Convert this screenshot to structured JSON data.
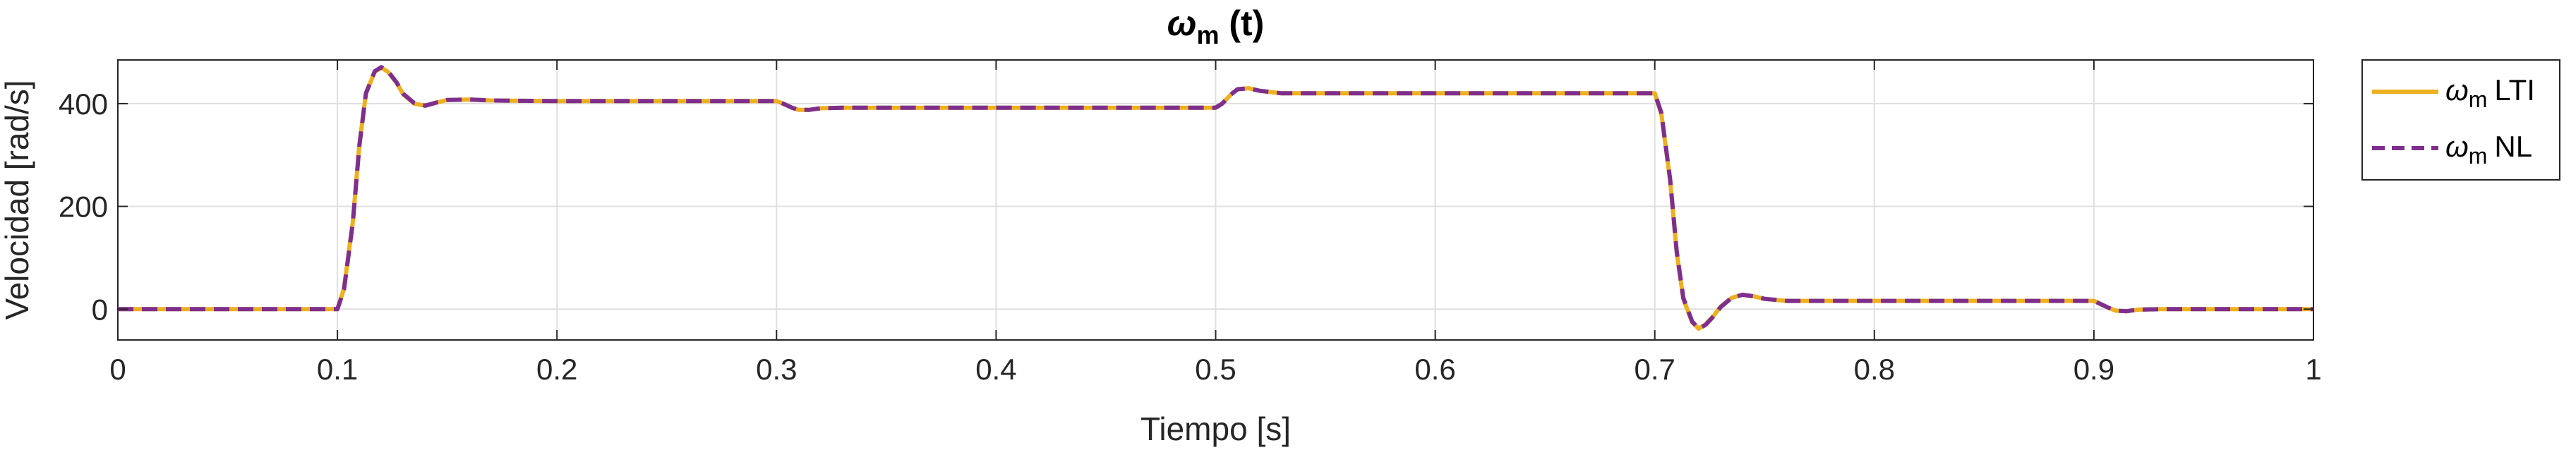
{
  "chart_data": {
    "type": "line",
    "title": "ω",
    "title_sub": "m",
    "title_suffix": " (t)",
    "xlabel": "Tiempo [s]",
    "ylabel": "Velocidad [rad/s]",
    "xlim": [
      0,
      1
    ],
    "ylim": [
      -60,
      485
    ],
    "xticks": [
      0,
      0.1,
      0.2,
      0.3,
      0.4,
      0.5,
      0.6,
      0.7,
      0.8,
      0.9,
      1
    ],
    "xtick_labels": [
      "0",
      "0.1",
      "0.2",
      "0.3",
      "0.4",
      "0.5",
      "0.6",
      "0.7",
      "0.8",
      "0.9",
      "1"
    ],
    "yticks": [
      0,
      200,
      400
    ],
    "ytick_labels": [
      "0",
      "200",
      "400"
    ],
    "grid": true,
    "legend_position": "outside-right",
    "x": [
      0,
      0.1,
      0.103,
      0.107,
      0.11,
      0.113,
      0.117,
      0.12,
      0.123,
      0.127,
      0.13,
      0.135,
      0.14,
      0.145,
      0.15,
      0.16,
      0.17,
      0.2,
      0.3,
      0.303,
      0.307,
      0.31,
      0.315,
      0.32,
      0.33,
      0.35,
      0.4,
      0.5,
      0.503,
      0.507,
      0.51,
      0.515,
      0.52,
      0.53,
      0.55,
      0.6,
      0.7,
      0.703,
      0.707,
      0.71,
      0.713,
      0.717,
      0.72,
      0.723,
      0.727,
      0.73,
      0.735,
      0.74,
      0.745,
      0.75,
      0.76,
      0.77,
      0.8,
      0.9,
      0.903,
      0.907,
      0.91,
      0.915,
      0.92,
      0.93,
      0.95,
      1
    ],
    "series": [
      {
        "name": "LTI",
        "name_prefix": "ω",
        "name_sub": "m",
        "color": "#EDB120",
        "style": "solid",
        "values": [
          0,
          0,
          40,
          170,
          320,
          420,
          462,
          470,
          462,
          440,
          418,
          400,
          396,
          402,
          407,
          408,
          406,
          405,
          405,
          400,
          392,
          388,
          388,
          391,
          392,
          392,
          392,
          392,
          400,
          418,
          428,
          430,
          425,
          420,
          420,
          420,
          420,
          380,
          250,
          110,
          20,
          -25,
          -38,
          -30,
          -12,
          5,
          22,
          28,
          25,
          20,
          16,
          16,
          16,
          16,
          10,
          2,
          -3,
          -4,
          -1,
          0,
          0,
          0
        ]
      },
      {
        "name": "NL",
        "name_prefix": "ω",
        "name_sub": "m",
        "color": "#7E2F8E",
        "style": "dashed",
        "values": [
          0,
          0,
          38,
          168,
          318,
          420,
          463,
          471,
          463,
          441,
          419,
          401,
          396,
          402,
          407,
          408,
          406,
          405,
          405,
          400,
          392,
          388,
          388,
          391,
          392,
          392,
          392,
          392,
          400,
          418,
          428,
          430,
          425,
          420,
          420,
          420,
          420,
          382,
          252,
          112,
          22,
          -24,
          -38,
          -31,
          -13,
          4,
          22,
          28,
          25,
          20,
          16,
          16,
          16,
          16,
          10,
          2,
          -3,
          -4,
          -1,
          0,
          0,
          0
        ]
      }
    ]
  }
}
